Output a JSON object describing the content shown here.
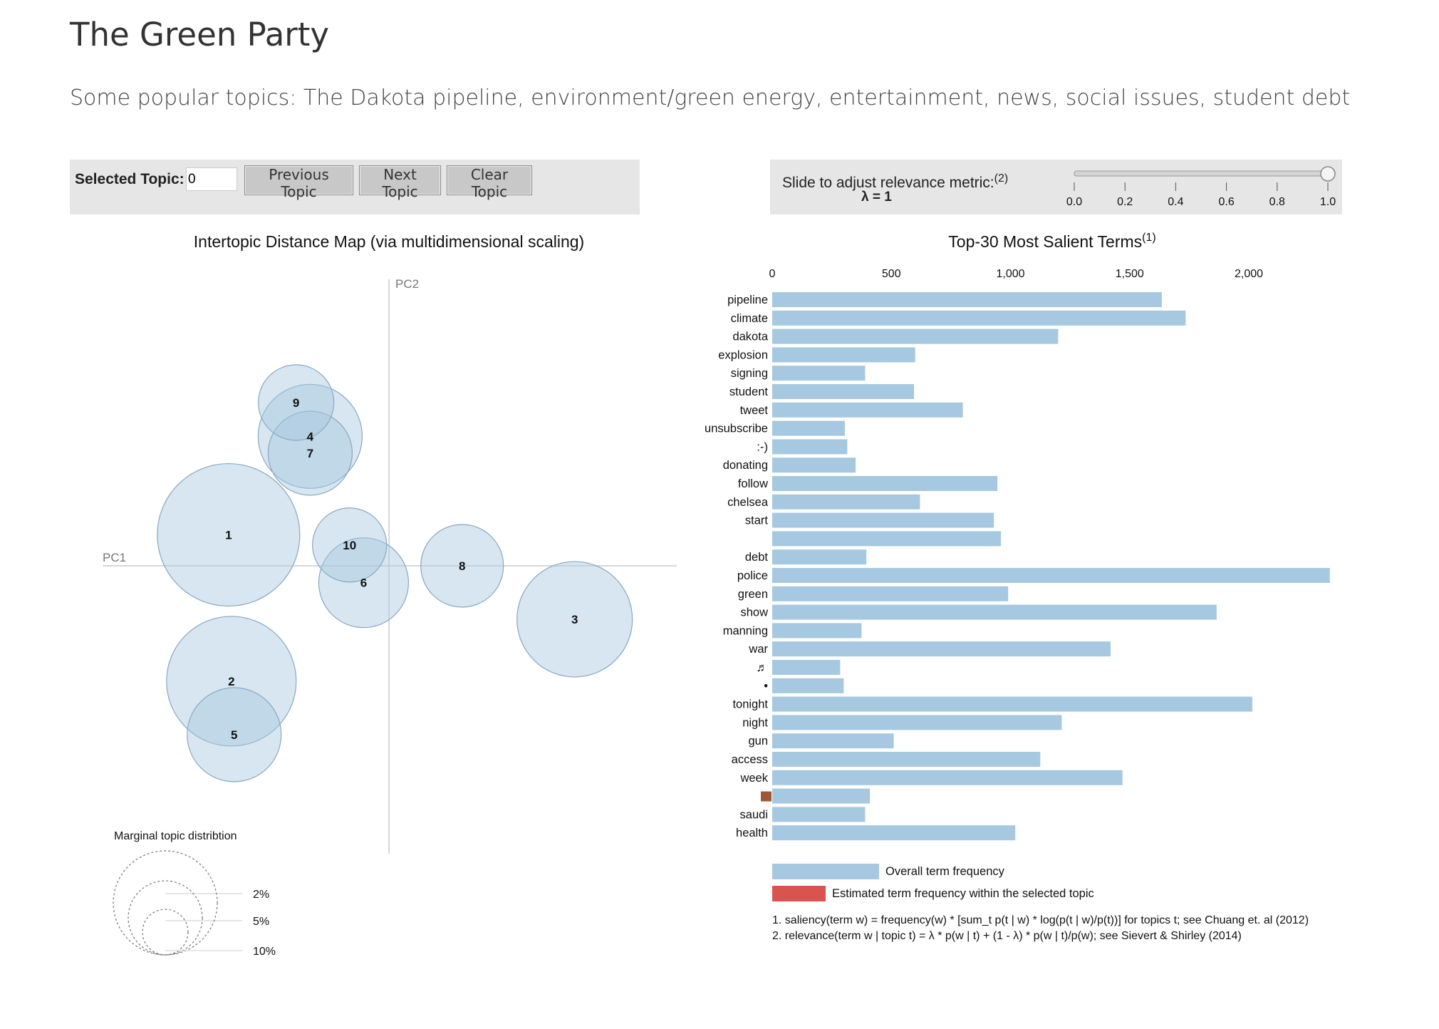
{
  "header": {
    "title": "The Green Party",
    "subtitle": "Some popular topics: The Dakota pipeline, environment/green energy, entertainment, news, social issues, student debt"
  },
  "controls": {
    "selected_topic_label": "Selected Topic:",
    "selected_topic_value": "0",
    "previous_label": "Previous Topic",
    "next_label": "Next Topic",
    "clear_label": "Clear Topic"
  },
  "relevance": {
    "label": "Slide to adjust relevance metric:",
    "label_note": "(2)",
    "lambda_text": "λ = 1",
    "lambda_value": 1.0,
    "ticks": [
      "0.0",
      "0.2",
      "0.4",
      "0.6",
      "0.8",
      "1.0"
    ]
  },
  "colors": {
    "bar_overall": "#a6c8e0",
    "bar_topic": "#d9534f",
    "bubble_fill": "#a6c8e0",
    "bubble_stroke": "#8aa7c0",
    "panel_bg": "#e6e6e6"
  },
  "chart_data": [
    {
      "type": "scatter",
      "title": "Intertopic Distance Map (via multidimensional scaling)",
      "xlabel": "PC1",
      "ylabel": "PC2",
      "points": [
        {
          "label": "1",
          "x": -0.285,
          "y": 0.055,
          "r": 1.0
        },
        {
          "label": "2",
          "x": -0.28,
          "y": -0.205,
          "r": 0.91
        },
        {
          "label": "3",
          "x": 0.33,
          "y": -0.095,
          "r": 0.81
        },
        {
          "label": "4",
          "x": -0.14,
          "y": 0.23,
          "r": 0.73
        },
        {
          "label": "5",
          "x": -0.275,
          "y": -0.3,
          "r": 0.66
        },
        {
          "label": "6",
          "x": -0.045,
          "y": -0.03,
          "r": 0.63
        },
        {
          "label": "7",
          "x": -0.14,
          "y": 0.2,
          "r": 0.59
        },
        {
          "label": "8",
          "x": 0.13,
          "y": 0.0,
          "r": 0.58
        },
        {
          "label": "9",
          "x": -0.165,
          "y": 0.29,
          "r": 0.53
        },
        {
          "label": "10",
          "x": -0.07,
          "y": 0.037,
          "r": 0.52
        }
      ],
      "legend": {
        "title": "Marginal topic distribtion",
        "sizes": [
          "2%",
          "5%",
          "10%"
        ]
      }
    },
    {
      "type": "bar",
      "title": "Top-30 Most Salient Terms",
      "title_note": "(1)",
      "xlim": [
        0,
        2350
      ],
      "xticks": [
        "0",
        "500",
        "1,000",
        "1,500",
        "2,000"
      ],
      "xtick_values": [
        0,
        500,
        1000,
        1500,
        2000
      ],
      "categories": [
        "pipeline",
        "climate",
        "dakota",
        "explosion",
        "signing",
        "student",
        "tweet",
        "unsubscribe",
        ":-)",
        "donating",
        "follow",
        "chelsea",
        "start",
        "",
        "debt",
        "police",
        "green",
        "show",
        "manning",
        "war",
        "♬",
        "•",
        "tonight",
        "night",
        "gun",
        "access",
        "week",
        "■",
        "saudi",
        "health"
      ],
      "values": [
        1635,
        1735,
        1200,
        600,
        390,
        595,
        800,
        305,
        315,
        350,
        945,
        620,
        930,
        960,
        395,
        2340,
        990,
        1865,
        375,
        1420,
        285,
        300,
        2015,
        1215,
        510,
        1125,
        1470,
        410,
        390,
        1020
      ],
      "legend": [
        "Overall term frequency",
        "Estimated term frequency within the selected topic"
      ]
    }
  ],
  "footnotes": {
    "note1": "1. saliency(term w) = frequency(w) * [sum_t p(t | w) * log(p(t | w)/p(t))] for topics t; see Chuang et. al (2012)",
    "note2": "2. relevance(term w | topic t) = λ * p(w | t) + (1 - λ) * p(w | t)/p(w); see Sievert & Shirley (2014)"
  }
}
